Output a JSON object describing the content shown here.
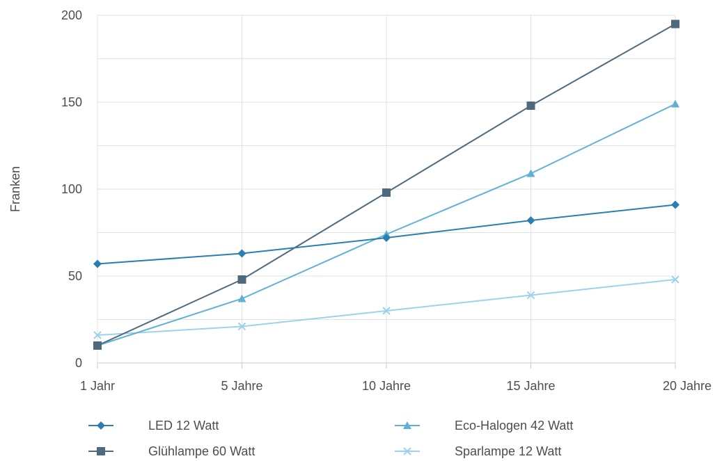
{
  "chart_data": {
    "type": "line",
    "title": "",
    "xlabel": "",
    "ylabel": "Franken",
    "categories": [
      "1 Jahr",
      "5 Jahre",
      "10 Jahre",
      "15 Jahre",
      "20 Jahre"
    ],
    "ylim": [
      0,
      200
    ],
    "yticks": [
      0,
      50,
      100,
      150,
      200
    ],
    "grid": true,
    "legend_position": "bottom",
    "series": [
      {
        "name": "LED 12 Watt",
        "marker": "diamond",
        "color": "#2a7fb0",
        "values": [
          57,
          63,
          72,
          82,
          91
        ]
      },
      {
        "name": "Glühlampe 60 Watt",
        "marker": "square",
        "color": "#4e6a7e",
        "values": [
          10,
          48,
          98,
          148,
          195
        ]
      },
      {
        "name": "Eco-Halogen 42 Watt",
        "marker": "triangle",
        "color": "#5fb2d6",
        "values": [
          10,
          37,
          74,
          109,
          149
        ]
      },
      {
        "name": "Sparlampe 12 Watt",
        "marker": "x",
        "color": "#9dd2ec",
        "values": [
          16,
          21,
          30,
          39,
          48
        ]
      }
    ]
  }
}
